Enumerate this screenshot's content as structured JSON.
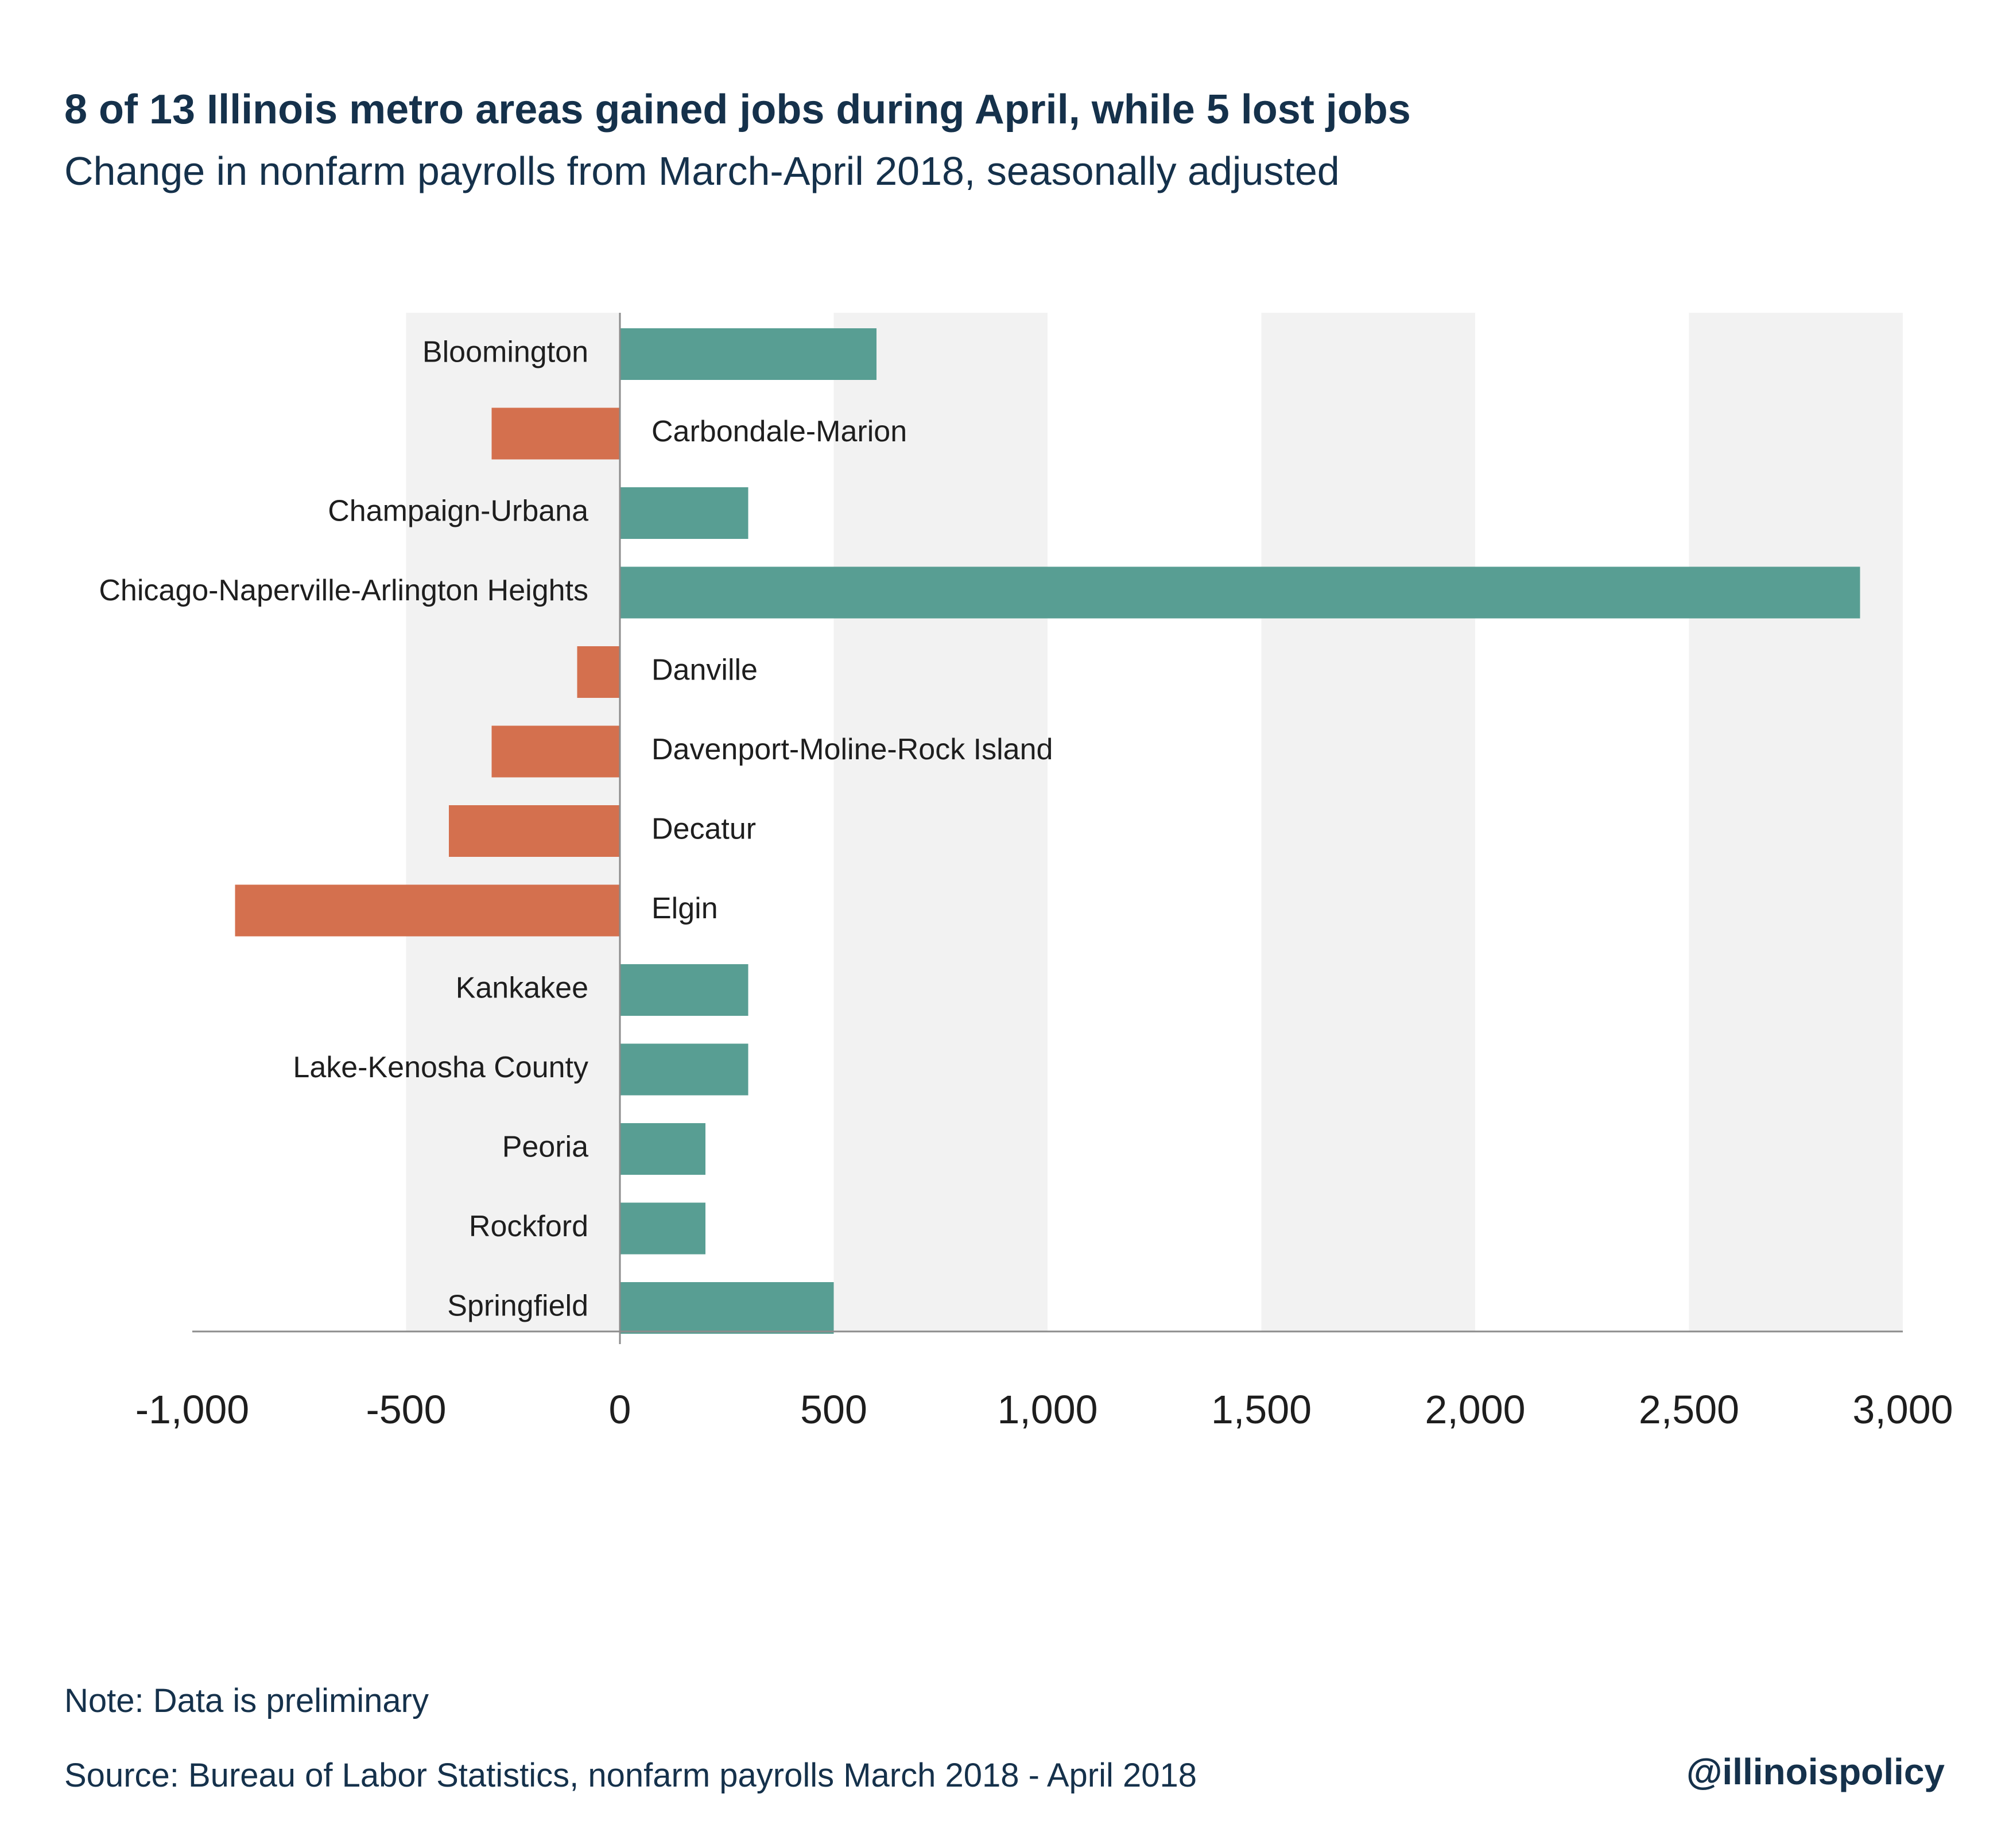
{
  "header": {
    "title": "8 of 13 Illinois metro areas gained jobs during April, while 5 lost jobs",
    "subtitle": "Change in nonfarm payrolls from March-April 2018, seasonally adjusted"
  },
  "footer": {
    "note": "Note: Data is preliminary",
    "source": "Source: Bureau of Labor Statistics, nonfarm payrolls  March 2018 - April 2018",
    "handle": "@illinoispolicy"
  },
  "colors": {
    "positive": "#589e93",
    "negative": "#d4704e",
    "band": "#f2f2f2",
    "axis": "#8c8c8c",
    "text_dark": "#15314b"
  },
  "chart_data": {
    "type": "bar",
    "orientation": "horizontal",
    "title": "8 of 13 Illinois metro areas gained jobs during April, while 5 lost jobs",
    "subtitle": "Change in nonfarm payrolls from March-April 2018, seasonally adjusted",
    "categories": [
      "Bloomington",
      "Carbondale-Marion",
      "Champaign-Urbana",
      "Chicago-Naperville-Arlington Heights",
      "Danville",
      "Davenport-Moline-Rock Island",
      "Decatur",
      "Elgin",
      "Kankakee",
      "Lake-Kenosha County",
      "Peoria",
      "Rockford",
      "Springfield"
    ],
    "values": [
      600,
      -300,
      300,
      2900,
      -100,
      -300,
      -400,
      -900,
      300,
      300,
      200,
      200,
      500
    ],
    "xlim": [
      -1000,
      3000
    ],
    "xticks": [
      -1000,
      -500,
      0,
      500,
      1000,
      1500,
      2000,
      2500,
      3000
    ],
    "xtick_labels": [
      "-1,000",
      "-500",
      "0",
      "500",
      "1,000",
      "1,500",
      "2,000",
      "2,500",
      "3,000"
    ],
    "xlabel": "",
    "ylabel": "",
    "grid": "alternating vertical bands",
    "legend": "none"
  }
}
